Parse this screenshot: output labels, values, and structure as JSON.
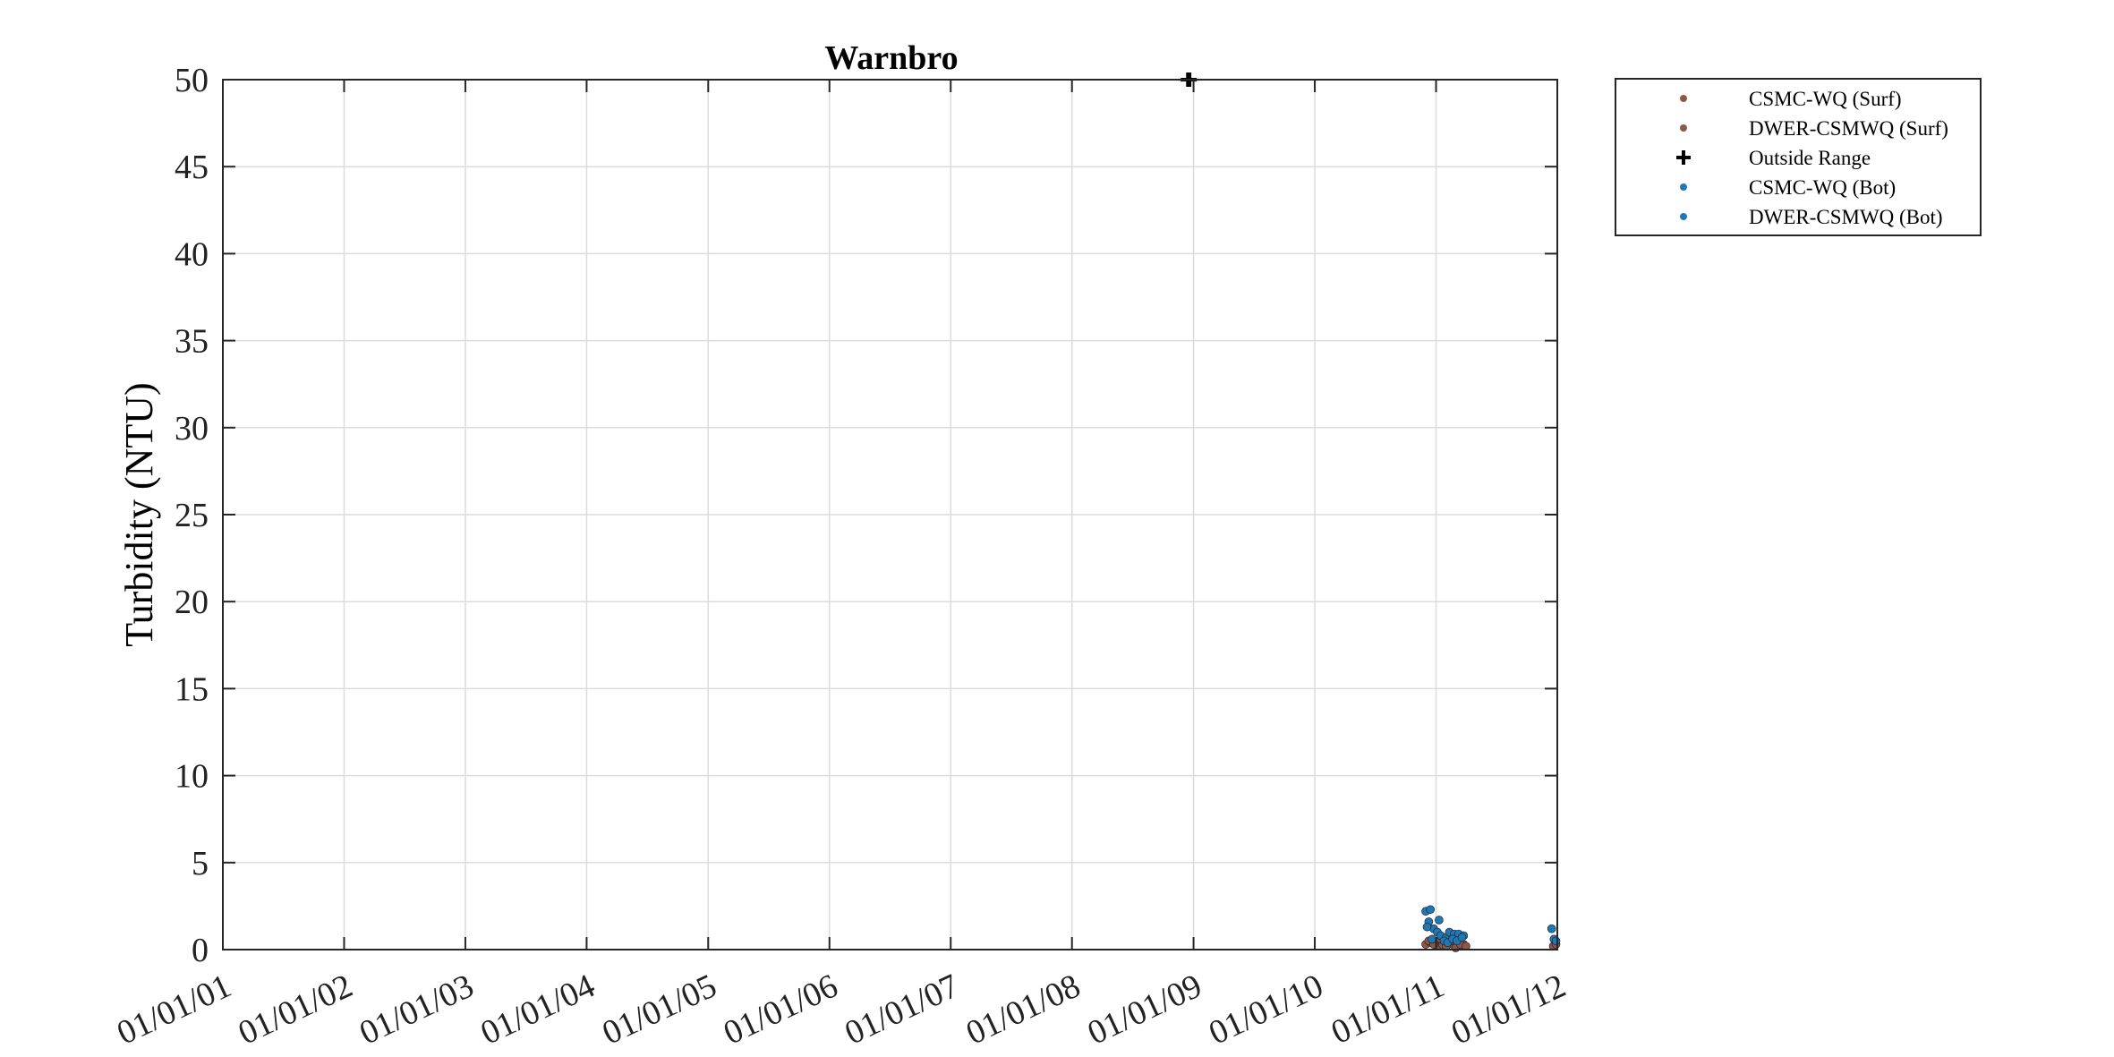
{
  "chart_data": {
    "type": "scatter",
    "title": "Warnbro",
    "xlabel": "",
    "ylabel": "Turbidity (NTU)",
    "xlim": [
      "01/01/01",
      "01/01/12"
    ],
    "ylim": [
      0,
      50
    ],
    "x_ticks": [
      "01/01/01",
      "01/01/02",
      "01/01/03",
      "01/01/04",
      "01/01/05",
      "01/01/06",
      "01/01/07",
      "01/01/08",
      "01/01/09",
      "01/01/10",
      "01/01/11",
      "01/01/12"
    ],
    "y_ticks": [
      0,
      5,
      10,
      15,
      20,
      25,
      30,
      35,
      40,
      45,
      50
    ],
    "grid": true,
    "legend_position": "outside-top-right",
    "series": [
      {
        "name": "CSMC-WQ (Surf)",
        "color": "#8c564b",
        "marker": "dot",
        "points": [
          [
            "01/12/10",
            0.3
          ],
          [
            "15/12/10",
            0.4
          ],
          [
            "05/01/11",
            0.2
          ],
          [
            "20/01/11",
            0.3
          ],
          [
            "05/02/11",
            0.4
          ],
          [
            "20/02/11",
            0.3
          ],
          [
            "10/03/11",
            0.2
          ],
          [
            "25/03/11",
            0.3
          ]
        ]
      },
      {
        "name": "DWER-CSMWQ (Surf)",
        "color": "#8c564b",
        "marker": "dot",
        "points": [
          [
            "10/12/10",
            0.5
          ],
          [
            "25/12/10",
            0.3
          ],
          [
            "15/01/11",
            0.6
          ],
          [
            "01/02/11",
            0.2
          ],
          [
            "15/02/11",
            0.5
          ],
          [
            "01/03/11",
            0.1
          ],
          [
            "15/03/11",
            0.3
          ],
          [
            "01/04/11",
            0.2
          ],
          [
            "20/12/11",
            0.2
          ],
          [
            "28/12/11",
            0.3
          ]
        ]
      },
      {
        "name": "Outside Range",
        "color": "#000000",
        "marker": "plus",
        "points": [
          [
            "15/12/08",
            50
          ],
          [
            "20/12/08",
            50
          ]
        ]
      },
      {
        "name": "CSMC-WQ (Bot)",
        "color": "#1f77b4",
        "marker": "dot",
        "points": [
          [
            "01/12/10",
            2.2
          ],
          [
            "15/12/10",
            2.3
          ],
          [
            "10/12/10",
            1.6
          ],
          [
            "25/12/10",
            1.2
          ],
          [
            "05/01/11",
            1.0
          ],
          [
            "15/01/11",
            0.8
          ],
          [
            "01/02/11",
            0.7
          ],
          [
            "10/02/11",
            1.0
          ],
          [
            "25/02/11",
            0.9
          ],
          [
            "10/03/11",
            0.9
          ],
          [
            "25/03/11",
            0.8
          ]
        ]
      },
      {
        "name": "DWER-CSMWQ (Bot)",
        "color": "#1f77b4",
        "marker": "dot",
        "points": [
          [
            "05/12/10",
            1.3
          ],
          [
            "20/12/10",
            0.6
          ],
          [
            "10/01/11",
            1.7
          ],
          [
            "25/01/11",
            0.5
          ],
          [
            "05/02/11",
            0.4
          ],
          [
            "20/02/11",
            0.6
          ],
          [
            "05/03/11",
            0.5
          ],
          [
            "20/03/11",
            0.7
          ],
          [
            "15/12/11",
            1.2
          ],
          [
            "22/12/11",
            0.6
          ],
          [
            "28/12/11",
            0.5
          ]
        ]
      }
    ]
  }
}
